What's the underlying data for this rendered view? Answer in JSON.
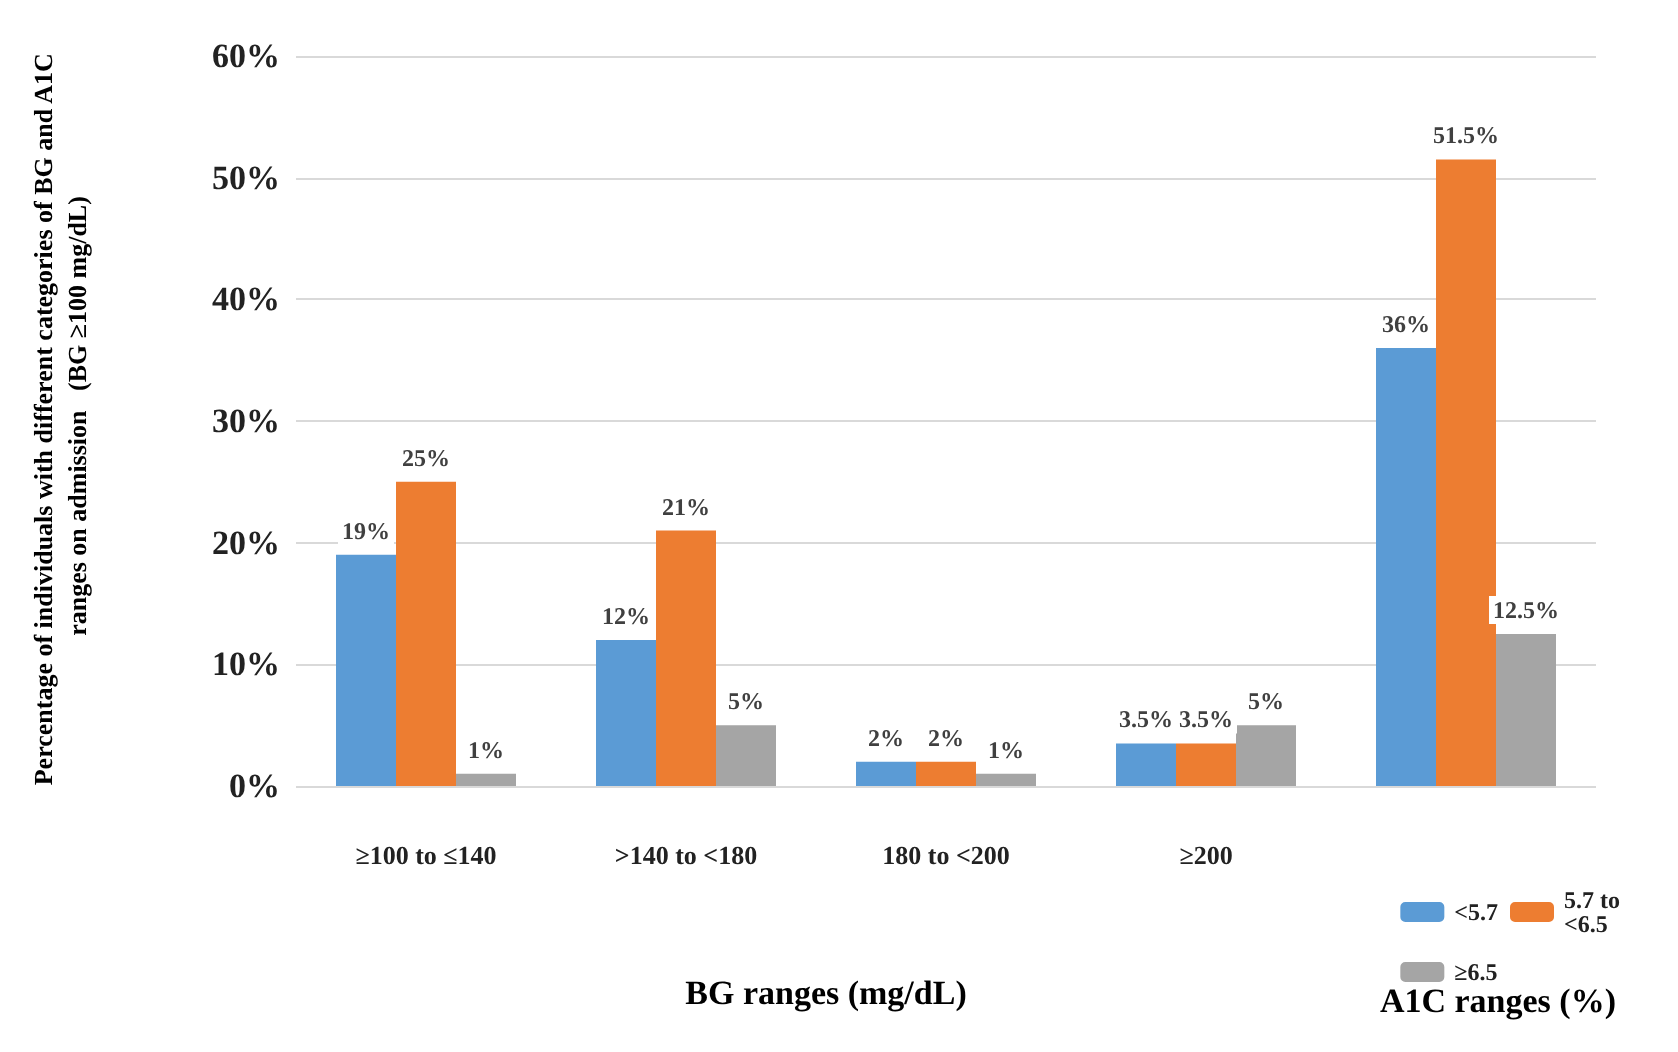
{
  "chart_data": {
    "type": "bar",
    "ylabel": "Percentage of individuals with different categories of BG and A1C ranges on admission   (BG ≥100 mg/dL)",
    "xlabel": "BG ranges (mg/dL)",
    "annotations": [
      "A1C ranges (%)"
    ],
    "categories": [
      "≥100 to ≤140",
      ">140 to <180",
      "180 to <200",
      "≥200",
      null
    ],
    "series": [
      {
        "name": "<5.7",
        "color": "#5b9bd5",
        "values": [
          19,
          12,
          2,
          3.5,
          36
        ],
        "value_labels": [
          "19%",
          "12%",
          "2%",
          "3.5%",
          "36%"
        ]
      },
      {
        "name": "5.7 to <6.5",
        "color": "#ed7d31",
        "values": [
          25,
          21,
          2,
          3.5,
          51.5
        ],
        "value_labels": [
          "25%",
          "21%",
          "2%",
          "3.5%",
          "51.5%"
        ]
      },
      {
        "name": "≥6.5",
        "color": "#a5a5a5",
        "values": [
          1,
          5,
          1,
          5,
          12.5
        ],
        "value_labels": [
          "1%",
          "5%",
          "1%",
          "5%",
          "12.5%"
        ]
      }
    ],
    "ylim": [
      0,
      60
    ],
    "yticks": [
      {
        "value": 0,
        "label": "0%"
      },
      {
        "value": 10,
        "label": "10%"
      },
      {
        "value": 20,
        "label": "20%"
      },
      {
        "value": 30,
        "label": "30%"
      },
      {
        "value": 40,
        "label": "40%"
      },
      {
        "value": 50,
        "label": "50%"
      },
      {
        "value": 60,
        "label": "60%"
      }
    ],
    "grid": "y",
    "legend": "bottom right"
  }
}
